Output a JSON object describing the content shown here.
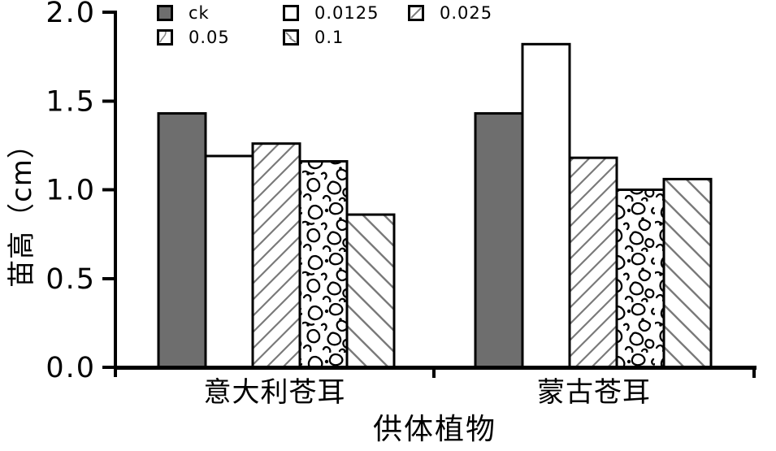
{
  "chart_data": {
    "type": "bar",
    "title": "",
    "xlabel": "供体植物",
    "ylabel": "苗高（cm）",
    "ylim": [
      0.0,
      2.0
    ],
    "yticks": [
      0.0,
      0.5,
      1.0,
      1.5,
      2.0
    ],
    "ytick_labels": [
      "0.0",
      "0.5",
      "1.0",
      "1.5",
      "2.0"
    ],
    "categories": [
      "意大利苍耳",
      "蒙古苍耳"
    ],
    "series": [
      {
        "name": "ck",
        "pattern": "solid-gray",
        "values": [
          1.43,
          1.43
        ]
      },
      {
        "name": "0.0125",
        "pattern": "plain-white",
        "values": [
          1.19,
          1.82
        ]
      },
      {
        "name": "0.025",
        "pattern": "hatch-forward",
        "values": [
          1.26,
          1.18
        ]
      },
      {
        "name": "0.05",
        "pattern": "squiggle",
        "values": [
          1.16,
          1.0
        ]
      },
      {
        "name": "0.1",
        "pattern": "hatch-backward",
        "values": [
          0.86,
          1.06
        ]
      }
    ],
    "legend_position": "top-left-two-rows",
    "grid": false,
    "colors": {
      "bar_gray": "#6e6e6e",
      "bar_border": "#000000",
      "hatch_line": "#7a7a7a",
      "squiggle_line": "#000000",
      "axis": "#000000",
      "background": "#ffffff",
      "text": "#000000"
    }
  }
}
